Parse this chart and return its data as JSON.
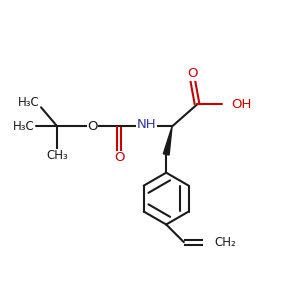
{
  "background_color": "#ffffff",
  "line_color": "#1a1a1a",
  "red_color": "#cc0000",
  "blue_color": "#3333aa",
  "line_width": 1.5,
  "figsize": [
    3.0,
    3.0
  ],
  "dpi": 100,
  "xlim": [
    0,
    10
  ],
  "ylim": [
    0,
    10
  ]
}
